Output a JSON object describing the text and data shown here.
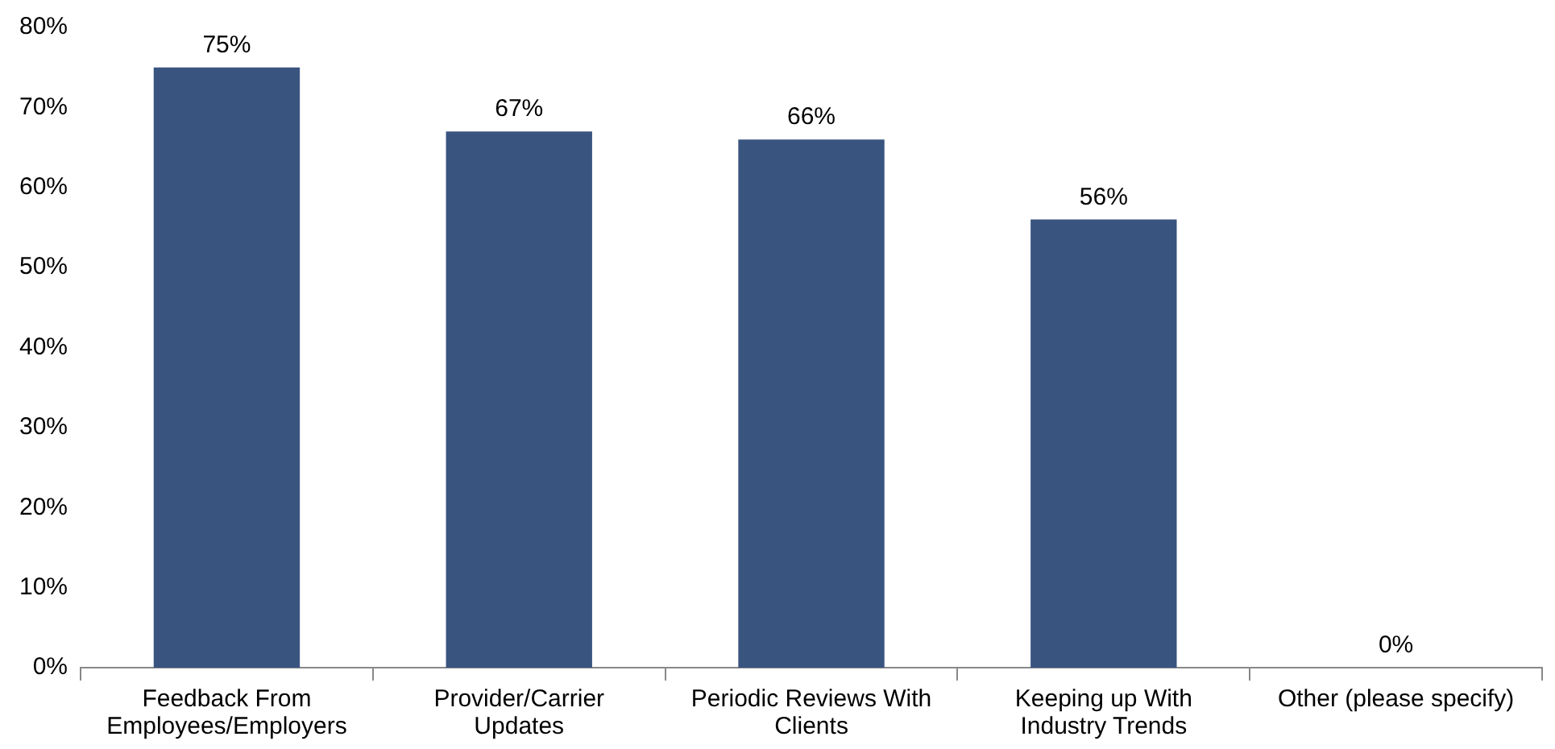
{
  "chart_data": {
    "type": "bar",
    "categories": [
      "Feedback From Employees/Employers",
      "Provider/Carrier Updates",
      "Periodic Reviews With Clients",
      "Keeping up With Industry Trends",
      "Other (please specify)"
    ],
    "values": [
      75,
      67,
      66,
      56,
      0
    ],
    "value_labels": [
      "75%",
      "67%",
      "66%",
      "56%",
      "0%"
    ],
    "color": "#3a5480",
    "ylim": [
      0,
      80
    ],
    "yticks": [
      {
        "value": 0,
        "label": "0%"
      },
      {
        "value": 10,
        "label": "10%"
      },
      {
        "value": 20,
        "label": "20%"
      },
      {
        "value": 30,
        "label": "30%"
      },
      {
        "value": 40,
        "label": "40%"
      },
      {
        "value": 50,
        "label": "50%"
      },
      {
        "value": 60,
        "label": "60%"
      },
      {
        "value": 70,
        "label": "70%"
      },
      {
        "value": 80,
        "label": "80%"
      }
    ],
    "grid": false,
    "legend": false
  }
}
